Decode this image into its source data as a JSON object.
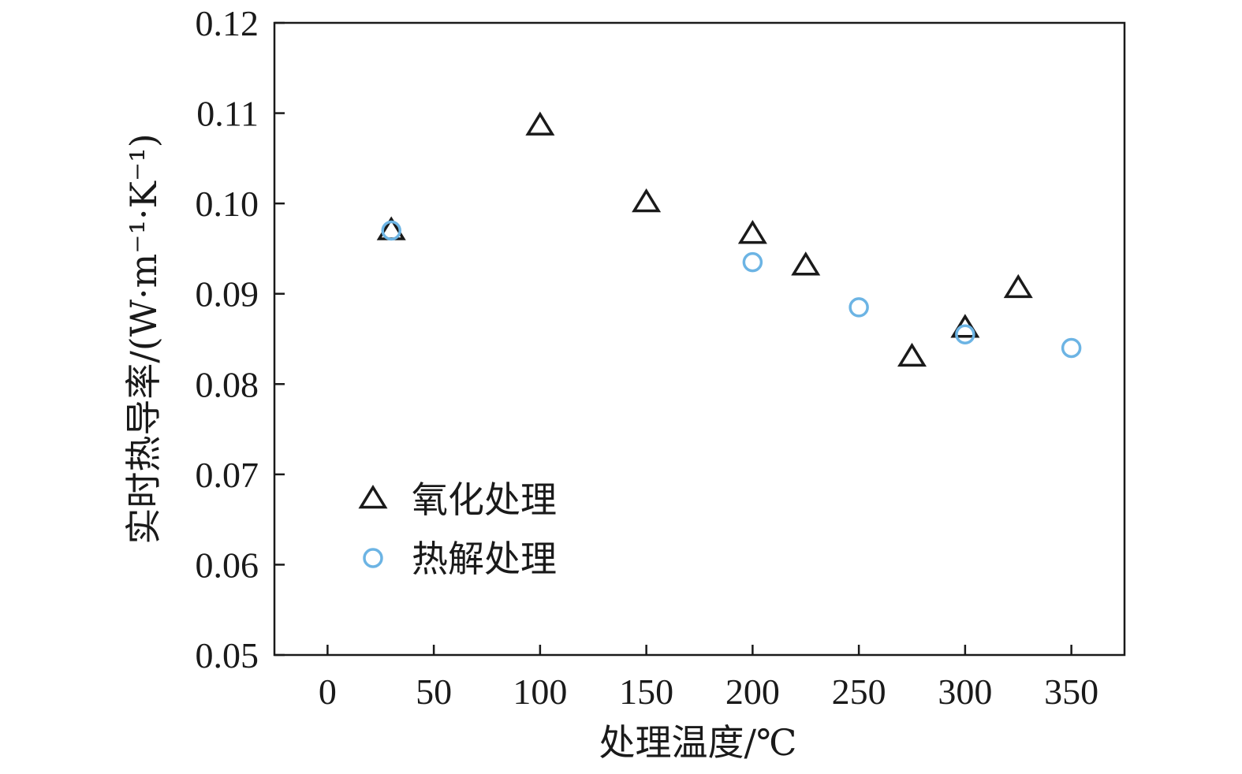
{
  "chart_data": {
    "type": "scatter",
    "xlabel": "处理温度/℃",
    "ylabel": "实时热导率/(W·m⁻¹·K⁻¹)",
    "xlim": [
      -25,
      375
    ],
    "ylim": [
      0.05,
      0.12
    ],
    "x_ticks": [
      0,
      50,
      100,
      150,
      200,
      250,
      300,
      350
    ],
    "y_ticks": [
      0.05,
      0.06,
      0.07,
      0.08,
      0.09,
      0.1,
      0.11,
      0.12
    ],
    "y_tick_labels": [
      "0.05",
      "0.06",
      "0.07",
      "0.08",
      "0.09",
      "0.10",
      "0.11",
      "0.12"
    ],
    "legend_position": "lower-left",
    "grid": false,
    "series": [
      {
        "name": "氧化处理",
        "marker": "triangle-open",
        "color": "#1a1a1a",
        "x": [
          30,
          100,
          150,
          200,
          225,
          275,
          300,
          325
        ],
        "y": [
          0.097,
          0.1086,
          0.1001,
          0.0966,
          0.0931,
          0.083,
          0.0862,
          0.0906
        ]
      },
      {
        "name": "热解处理",
        "marker": "circle-open",
        "color": "#6cb4e4",
        "x": [
          30,
          200,
          250,
          300,
          350
        ],
        "y": [
          0.097,
          0.0935,
          0.0885,
          0.0855,
          0.084
        ]
      }
    ]
  }
}
